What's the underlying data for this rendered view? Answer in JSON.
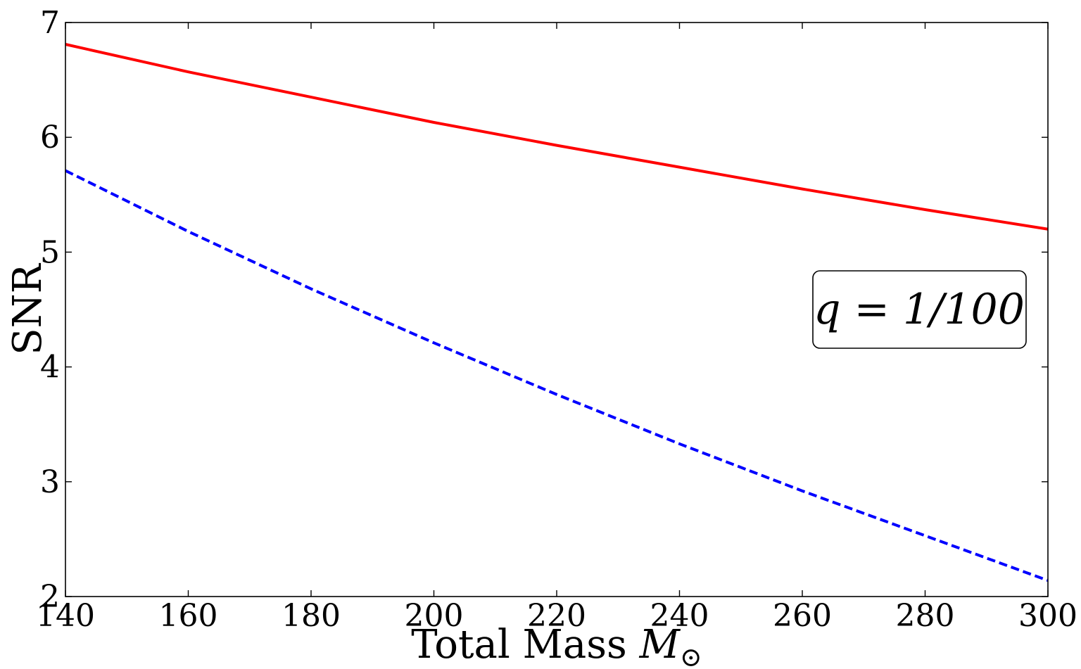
{
  "chart_data": {
    "type": "line",
    "title": "",
    "xlabel": "Total Mass M⊙",
    "xlabel_parts": {
      "text": "Total Mass ",
      "symbol": "M",
      "subscript": "⊙"
    },
    "ylabel": "SNR",
    "xlim": [
      140,
      300
    ],
    "ylim": [
      2,
      7
    ],
    "xticks": [
      140,
      160,
      180,
      200,
      220,
      240,
      260,
      280,
      300
    ],
    "yticks": [
      2,
      3,
      4,
      5,
      6,
      7
    ],
    "grid": false,
    "legend": "none",
    "annotation": {
      "text": "q = 1/100",
      "position": "right-middle"
    },
    "series": [
      {
        "color": "#ff0000",
        "style": "solid",
        "x": [
          140,
          160,
          180,
          200,
          220,
          240,
          260,
          280,
          300
        ],
        "y": [
          6.81,
          6.57,
          6.35,
          6.13,
          5.93,
          5.74,
          5.55,
          5.37,
          5.2
        ]
      },
      {
        "color": "#0000ff",
        "style": "dashed",
        "x": [
          140,
          160,
          180,
          200,
          220,
          240,
          260,
          280,
          300
        ],
        "y": [
          5.71,
          5.18,
          4.68,
          4.21,
          3.76,
          3.33,
          2.92,
          2.53,
          2.14
        ]
      }
    ]
  }
}
